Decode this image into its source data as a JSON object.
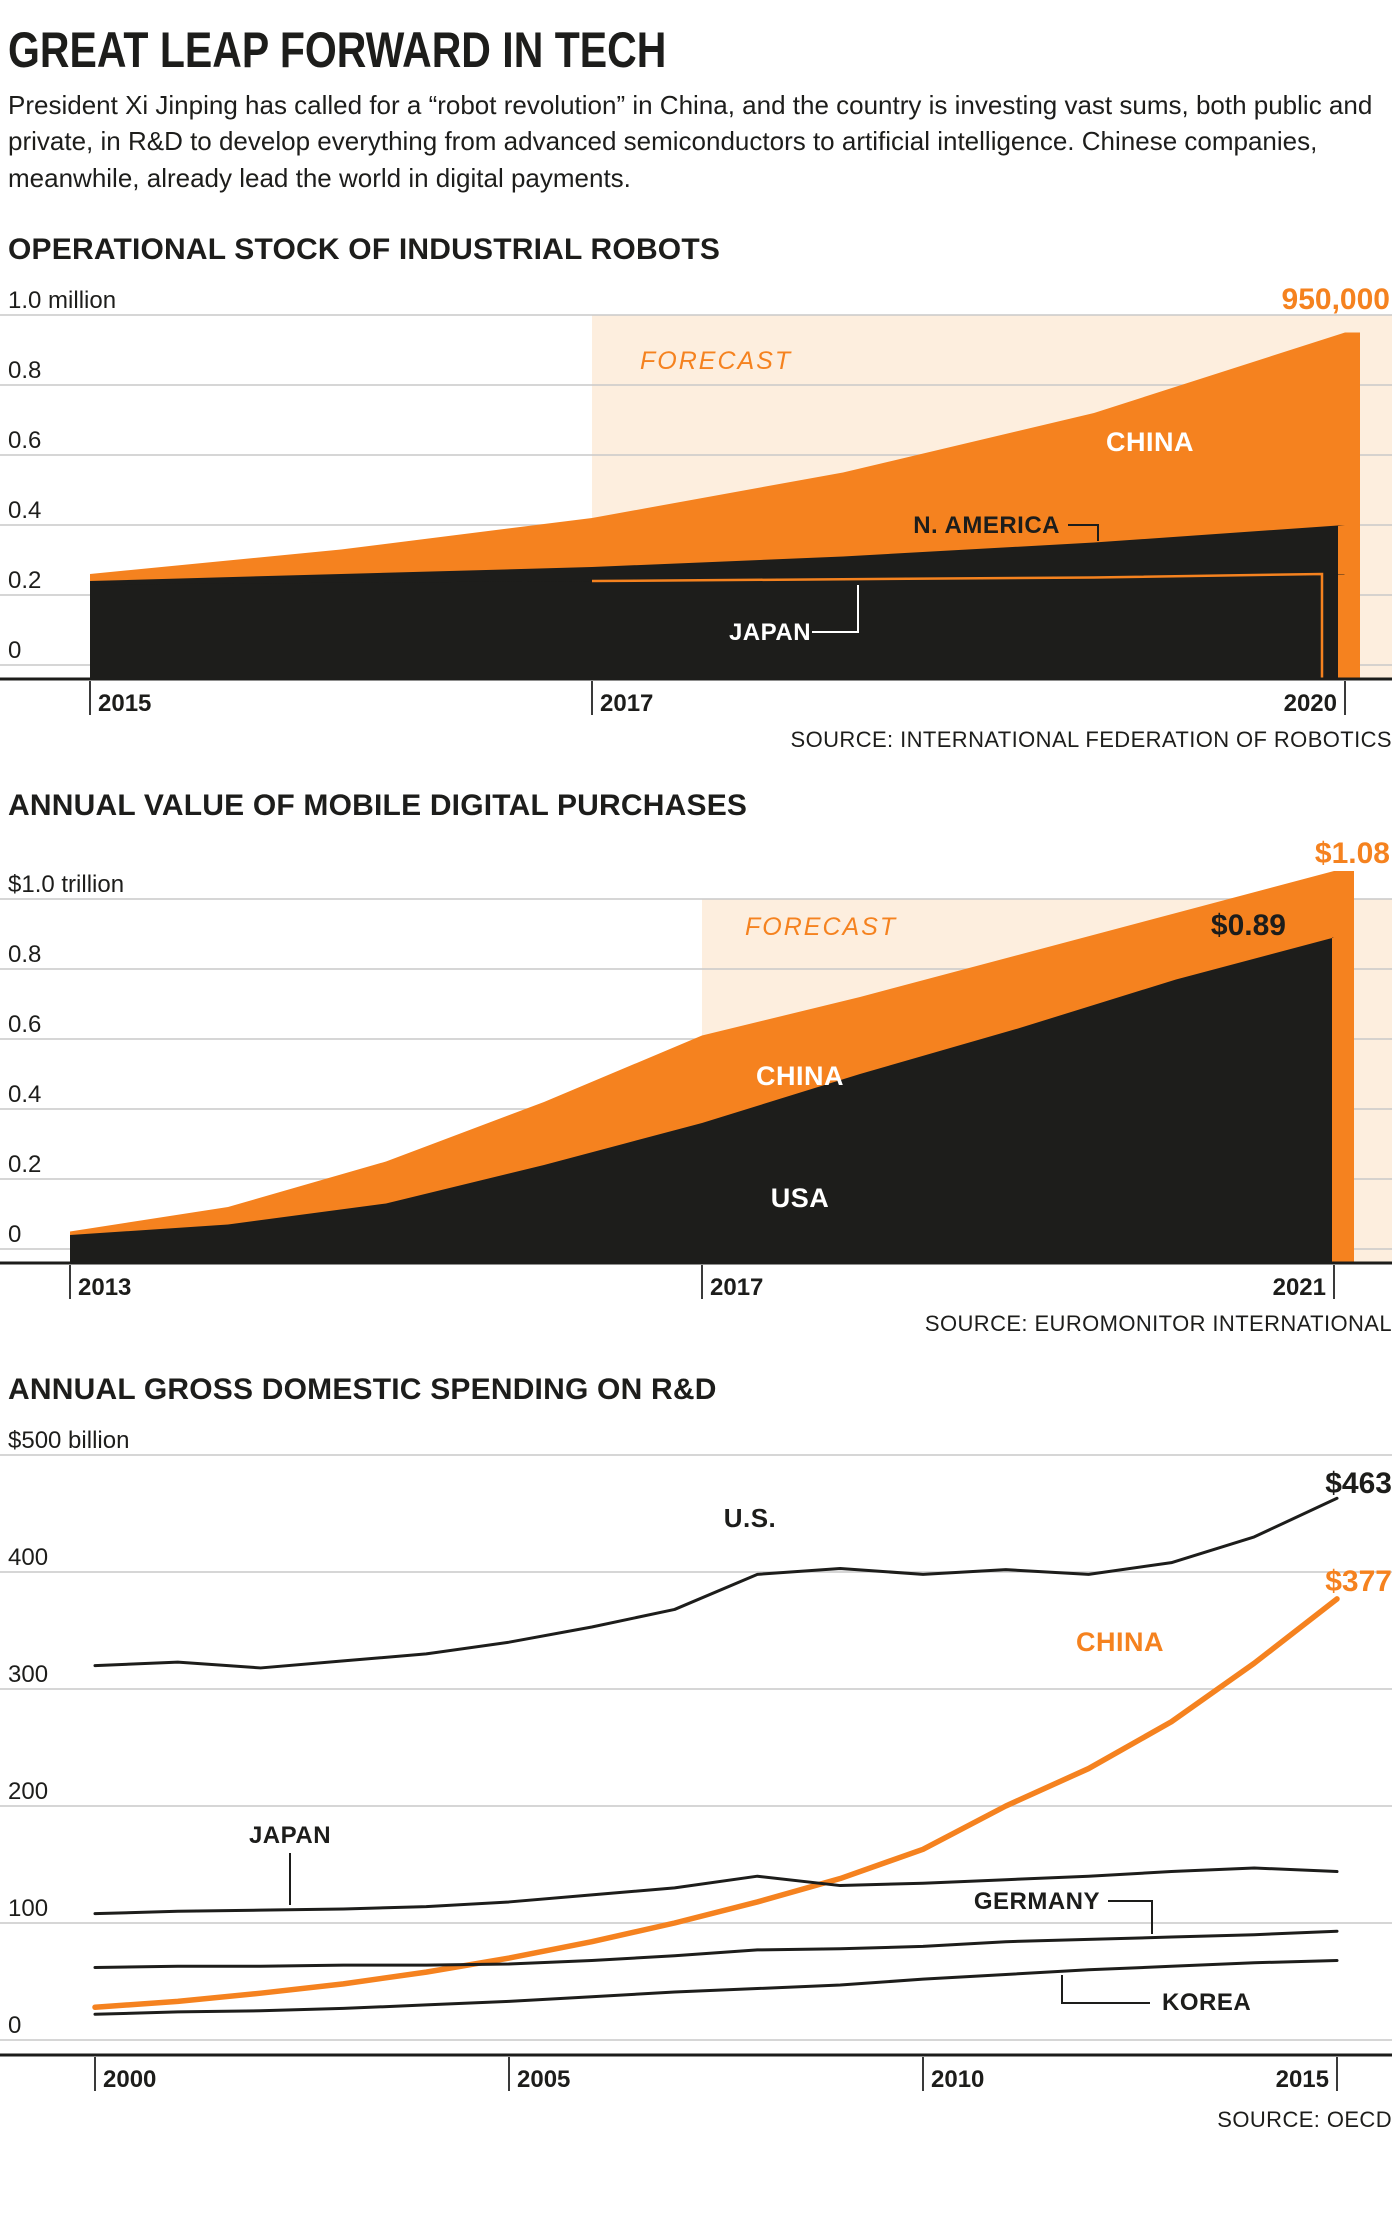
{
  "header": {
    "title": "GREAT LEAP FORWARD IN TECH",
    "intro": "President Xi Jinping has called for a “robot revolution” in China, and the country is investing vast sums, both public and private, in R&D to develop everything from advanced semiconductors to artificial intelligence. Chinese companies, meanwhile, already lead the world in digital payments."
  },
  "colors": {
    "orange": "#f5821f",
    "dark": "#1d1d1b",
    "forecast_band": "#fdeede",
    "grid": "#c9c9c9"
  },
  "chart_data": [
    {
      "id": "robots",
      "type": "area",
      "title": "OPERATIONAL STOCK OF INDUSTRIAL ROBOTS",
      "source": "SOURCE: INTERNATIONAL FEDERATION OF ROBOTICS",
      "forecast_label": "FORECAST",
      "forecast_start": 2017,
      "ylim": [
        0,
        1.0
      ],
      "yticks": [
        {
          "value": 1.0,
          "label": "1.0 million"
        },
        {
          "value": 0.8,
          "label": "0.8"
        },
        {
          "value": 0.6,
          "label": "0.6"
        },
        {
          "value": 0.4,
          "label": "0.4"
        },
        {
          "value": 0.2,
          "label": "0.2"
        },
        {
          "value": 0,
          "label": "0"
        }
      ],
      "x": [
        2015,
        2016,
        2017,
        2018,
        2019,
        2020
      ],
      "xticks": [
        {
          "value": 2015,
          "label": "2015"
        },
        {
          "value": 2017,
          "label": "2017"
        },
        {
          "value": 2020,
          "label": "2020"
        }
      ],
      "series": [
        {
          "name": "CHINA",
          "color": "orange",
          "values": [
            0.26,
            0.33,
            0.42,
            0.55,
            0.72,
            0.95
          ]
        },
        {
          "name": "N. AMERICA",
          "color": "dark",
          "values": [
            0.24,
            0.26,
            0.28,
            0.31,
            0.35,
            0.4
          ]
        },
        {
          "name": "JAPAN",
          "color": "dark",
          "values": [
            0.23,
            0.235,
            0.24,
            0.245,
            0.25,
            0.26
          ]
        }
      ],
      "callouts": [
        {
          "text": "950,000",
          "color": "orange"
        }
      ]
    },
    {
      "id": "mobile-purchases",
      "type": "area",
      "title": "ANNUAL VALUE OF MOBILE DIGITAL PURCHASES",
      "source": "SOURCE: EUROMONITOR INTERNATIONAL",
      "forecast_label": "FORECAST",
      "forecast_start": 2017,
      "ylim": [
        0,
        1.0
      ],
      "yticks": [
        {
          "value": 1.0,
          "label": "$1.0 trillion"
        },
        {
          "value": 0.8,
          "label": "0.8"
        },
        {
          "value": 0.6,
          "label": "0.6"
        },
        {
          "value": 0.4,
          "label": "0.4"
        },
        {
          "value": 0.2,
          "label": "0.2"
        },
        {
          "value": 0,
          "label": "0"
        }
      ],
      "x": [
        2013,
        2014,
        2015,
        2016,
        2017,
        2018,
        2019,
        2020,
        2021
      ],
      "xticks": [
        {
          "value": 2013,
          "label": "2013"
        },
        {
          "value": 2017,
          "label": "2017"
        },
        {
          "value": 2021,
          "label": "2021"
        }
      ],
      "series": [
        {
          "name": "CHINA",
          "color": "orange",
          "values": [
            0.05,
            0.12,
            0.25,
            0.42,
            0.61,
            0.72,
            0.84,
            0.96,
            1.08
          ]
        },
        {
          "name": "USA",
          "color": "dark",
          "values": [
            0.04,
            0.07,
            0.13,
            0.24,
            0.36,
            0.5,
            0.63,
            0.77,
            0.89
          ]
        }
      ],
      "callouts": [
        {
          "text": "$1.08",
          "color": "orange"
        },
        {
          "text": "$0.89",
          "color": "dark"
        }
      ]
    },
    {
      "id": "rnd-spending",
      "type": "line",
      "title": "ANNUAL GROSS DOMESTIC SPENDING ON R&D",
      "source": "SOURCE: OECD",
      "ylim": [
        0,
        500
      ],
      "yticks": [
        {
          "value": 500,
          "label": "$500 billion"
        },
        {
          "value": 400,
          "label": "400"
        },
        {
          "value": 300,
          "label": "300"
        },
        {
          "value": 200,
          "label": "200"
        },
        {
          "value": 100,
          "label": "100"
        },
        {
          "value": 0,
          "label": "0"
        }
      ],
      "x": [
        2000,
        2001,
        2002,
        2003,
        2004,
        2005,
        2006,
        2007,
        2008,
        2009,
        2010,
        2011,
        2012,
        2013,
        2014,
        2015
      ],
      "xticks": [
        {
          "value": 2000,
          "label": "2000"
        },
        {
          "value": 2005,
          "label": "2005"
        },
        {
          "value": 2010,
          "label": "2010"
        },
        {
          "value": 2015,
          "label": "2015"
        }
      ],
      "series": [
        {
          "name": "U.S.",
          "color": "dark",
          "values": [
            320,
            323,
            318,
            324,
            330,
            340,
            353,
            368,
            398,
            403,
            398,
            402,
            398,
            408,
            430,
            463
          ]
        },
        {
          "name": "CHINA",
          "color": "orange",
          "values": [
            28,
            33,
            40,
            48,
            58,
            70,
            84,
            100,
            118,
            138,
            163,
            200,
            232,
            272,
            322,
            377
          ]
        },
        {
          "name": "JAPAN",
          "color": "dark",
          "values": [
            108,
            110,
            111,
            112,
            114,
            118,
            124,
            130,
            140,
            132,
            134,
            137,
            140,
            144,
            147,
            144
          ]
        },
        {
          "name": "GERMANY",
          "color": "dark",
          "values": [
            62,
            63,
            63,
            64,
            64,
            65,
            68,
            72,
            77,
            78,
            80,
            84,
            86,
            88,
            90,
            93
          ]
        },
        {
          "name": "KOREA",
          "color": "dark",
          "values": [
            22,
            24,
            25,
            27,
            30,
            33,
            37,
            41,
            44,
            47,
            52,
            56,
            60,
            63,
            66,
            68
          ]
        }
      ],
      "callouts": [
        {
          "text": "$463",
          "color": "dark"
        },
        {
          "text": "$377",
          "color": "orange"
        }
      ]
    }
  ]
}
